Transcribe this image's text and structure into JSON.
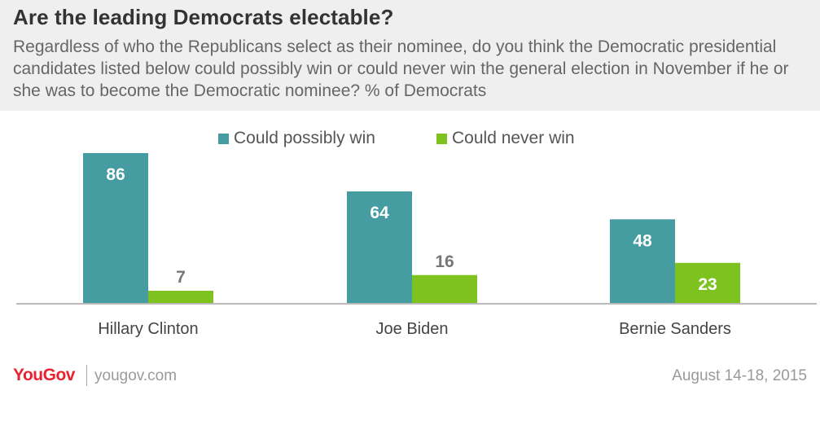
{
  "header": {
    "title": "Are the leading Democrats electable?",
    "subtitle": "Regardless of who the Republicans select as their nominee, do you think the Democratic presidential candidates listed below could possibly win or could never win the general election in November if he or she was to become the Democratic nominee? % of Democrats"
  },
  "chart_data": {
    "type": "bar",
    "title": "Are the leading Democrats electable?",
    "categories": [
      "Hillary Clinton",
      "Joe Biden",
      "Bernie Sanders"
    ],
    "series": [
      {
        "name": "Could possibly win",
        "values": [
          86,
          64,
          48
        ],
        "color": "#469da1"
      },
      {
        "name": "Could never win",
        "values": [
          7,
          16,
          23
        ],
        "color": "#7ec220"
      }
    ],
    "ylim": [
      0,
      100
    ],
    "grid": false,
    "legend_position": "top-center",
    "value_label_color_light": "#ffffff",
    "value_label_color_dark": "#777777"
  },
  "footer": {
    "logo": "YouGov",
    "url": "yougov.com",
    "date": "August 14-18, 2015"
  }
}
